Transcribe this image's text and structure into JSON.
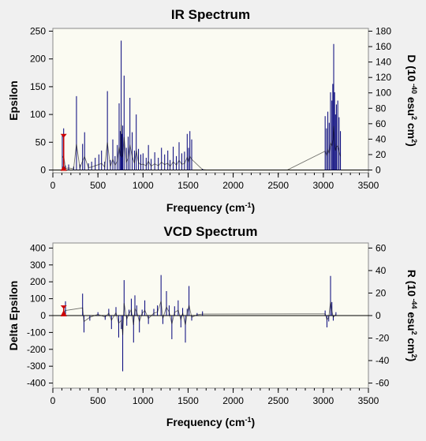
{
  "chart_data": [
    {
      "type": "line",
      "title": "IR Spectrum",
      "xlabel": "Frequency (cm-1)",
      "ylabel": "Epsilon",
      "y2label": "D (10-40 esu2 cm2)",
      "xlim": [
        0,
        3500
      ],
      "ylim": [
        -5,
        255
      ],
      "y2lim": [
        -3.6,
        183.6
      ],
      "xticks": [
        0,
        500,
        1000,
        1500,
        2000,
        2500,
        3000,
        3500
      ],
      "yticks": [
        0,
        50,
        100,
        150,
        200,
        250
      ],
      "y2ticks": [
        0,
        20,
        40,
        60,
        80,
        100,
        120,
        140,
        160,
        180
      ],
      "grid": false,
      "colors": {
        "spectrum": "#00007a",
        "peaks": "#000000",
        "marker": "#cc0000"
      },
      "marker_x": 120,
      "series": [
        {
          "name": "",
          "x": [
            105,
            120,
            140,
            175,
            230,
            262,
            300,
            330,
            352,
            395,
            430,
            470,
            510,
            540,
            575,
            605,
            638,
            665,
            690,
            715,
            735,
            750,
            758,
            765,
            775,
            790,
            815,
            835,
            855,
            880,
            905,
            925,
            950,
            975,
            1000,
            1035,
            1060,
            1090,
            1130,
            1170,
            1205,
            1240,
            1275,
            1300,
            1335,
            1370,
            1400,
            1430,
            1460,
            1490,
            1505,
            1520,
            1540,
            1660,
            1700,
            2000,
            2300,
            2600,
            3020,
            3035,
            3050,
            3065,
            3080,
            3095,
            3105,
            3115,
            3125,
            3135,
            3145,
            3160,
            3175,
            3190
          ],
          "y": [
            62,
            75,
            8,
            10,
            6,
            133,
            10,
            47,
            68,
            12,
            15,
            22,
            28,
            35,
            15,
            142,
            18,
            55,
            25,
            45,
            120,
            70,
            233,
            65,
            80,
            170,
            40,
            60,
            130,
            68,
            35,
            100,
            38,
            28,
            30,
            22,
            45,
            20,
            32,
            22,
            40,
            28,
            35,
            18,
            42,
            25,
            50,
            30,
            33,
            65,
            40,
            70,
            55,
            2,
            0,
            0,
            0,
            0,
            97,
            75,
            105,
            85,
            140,
            125,
            155,
            227,
            140,
            100,
            118,
            125,
            95,
            70
          ]
        }
      ]
    },
    {
      "type": "line",
      "title": "VCD Spectrum",
      "xlabel": "Frequency (cm-1)",
      "ylabel": "Delta Epsilon",
      "y2label": "R (10-44 esu2 cm2)",
      "xlim": [
        0,
        3500
      ],
      "ylim": [
        -430,
        430
      ],
      "y2lim": [
        -64.5,
        64.5
      ],
      "xticks": [
        0,
        500,
        1000,
        1500,
        2000,
        2500,
        3000,
        3500
      ],
      "yticks": [
        -400,
        -300,
        -200,
        -100,
        0,
        100,
        200,
        300,
        400
      ],
      "y2ticks": [
        -60,
        -40,
        -20,
        0,
        20,
        40,
        60
      ],
      "grid": false,
      "colors": {
        "spectrum": "#00007a",
        "peaks": "#000000",
        "marker": "#cc0000"
      },
      "marker_x": 120,
      "series": [
        {
          "name": "",
          "x": [
            120,
            140,
            330,
            345,
            410,
            500,
            580,
            620,
            650,
            700,
            730,
            760,
            775,
            790,
            820,
            845,
            870,
            895,
            910,
            930,
            960,
            990,
            1020,
            1060,
            1120,
            1160,
            1200,
            1220,
            1260,
            1290,
            1320,
            1350,
            1390,
            1420,
            1440,
            1470,
            1490,
            1510,
            1540,
            1600,
            1660,
            3020,
            3040,
            3060,
            3080,
            3095,
            3110,
            3140
          ],
          "y": [
            55,
            85,
            130,
            -100,
            -30,
            20,
            -25,
            40,
            -80,
            50,
            -130,
            -80,
            -330,
            210,
            -60,
            35,
            100,
            -160,
            120,
            60,
            -100,
            35,
            90,
            -50,
            40,
            60,
            240,
            -50,
            145,
            60,
            -140,
            55,
            90,
            -70,
            45,
            -160,
            40,
            175,
            -30,
            15,
            25,
            30,
            -70,
            -35,
            235,
            80,
            -30,
            20
          ]
        }
      ]
    }
  ]
}
